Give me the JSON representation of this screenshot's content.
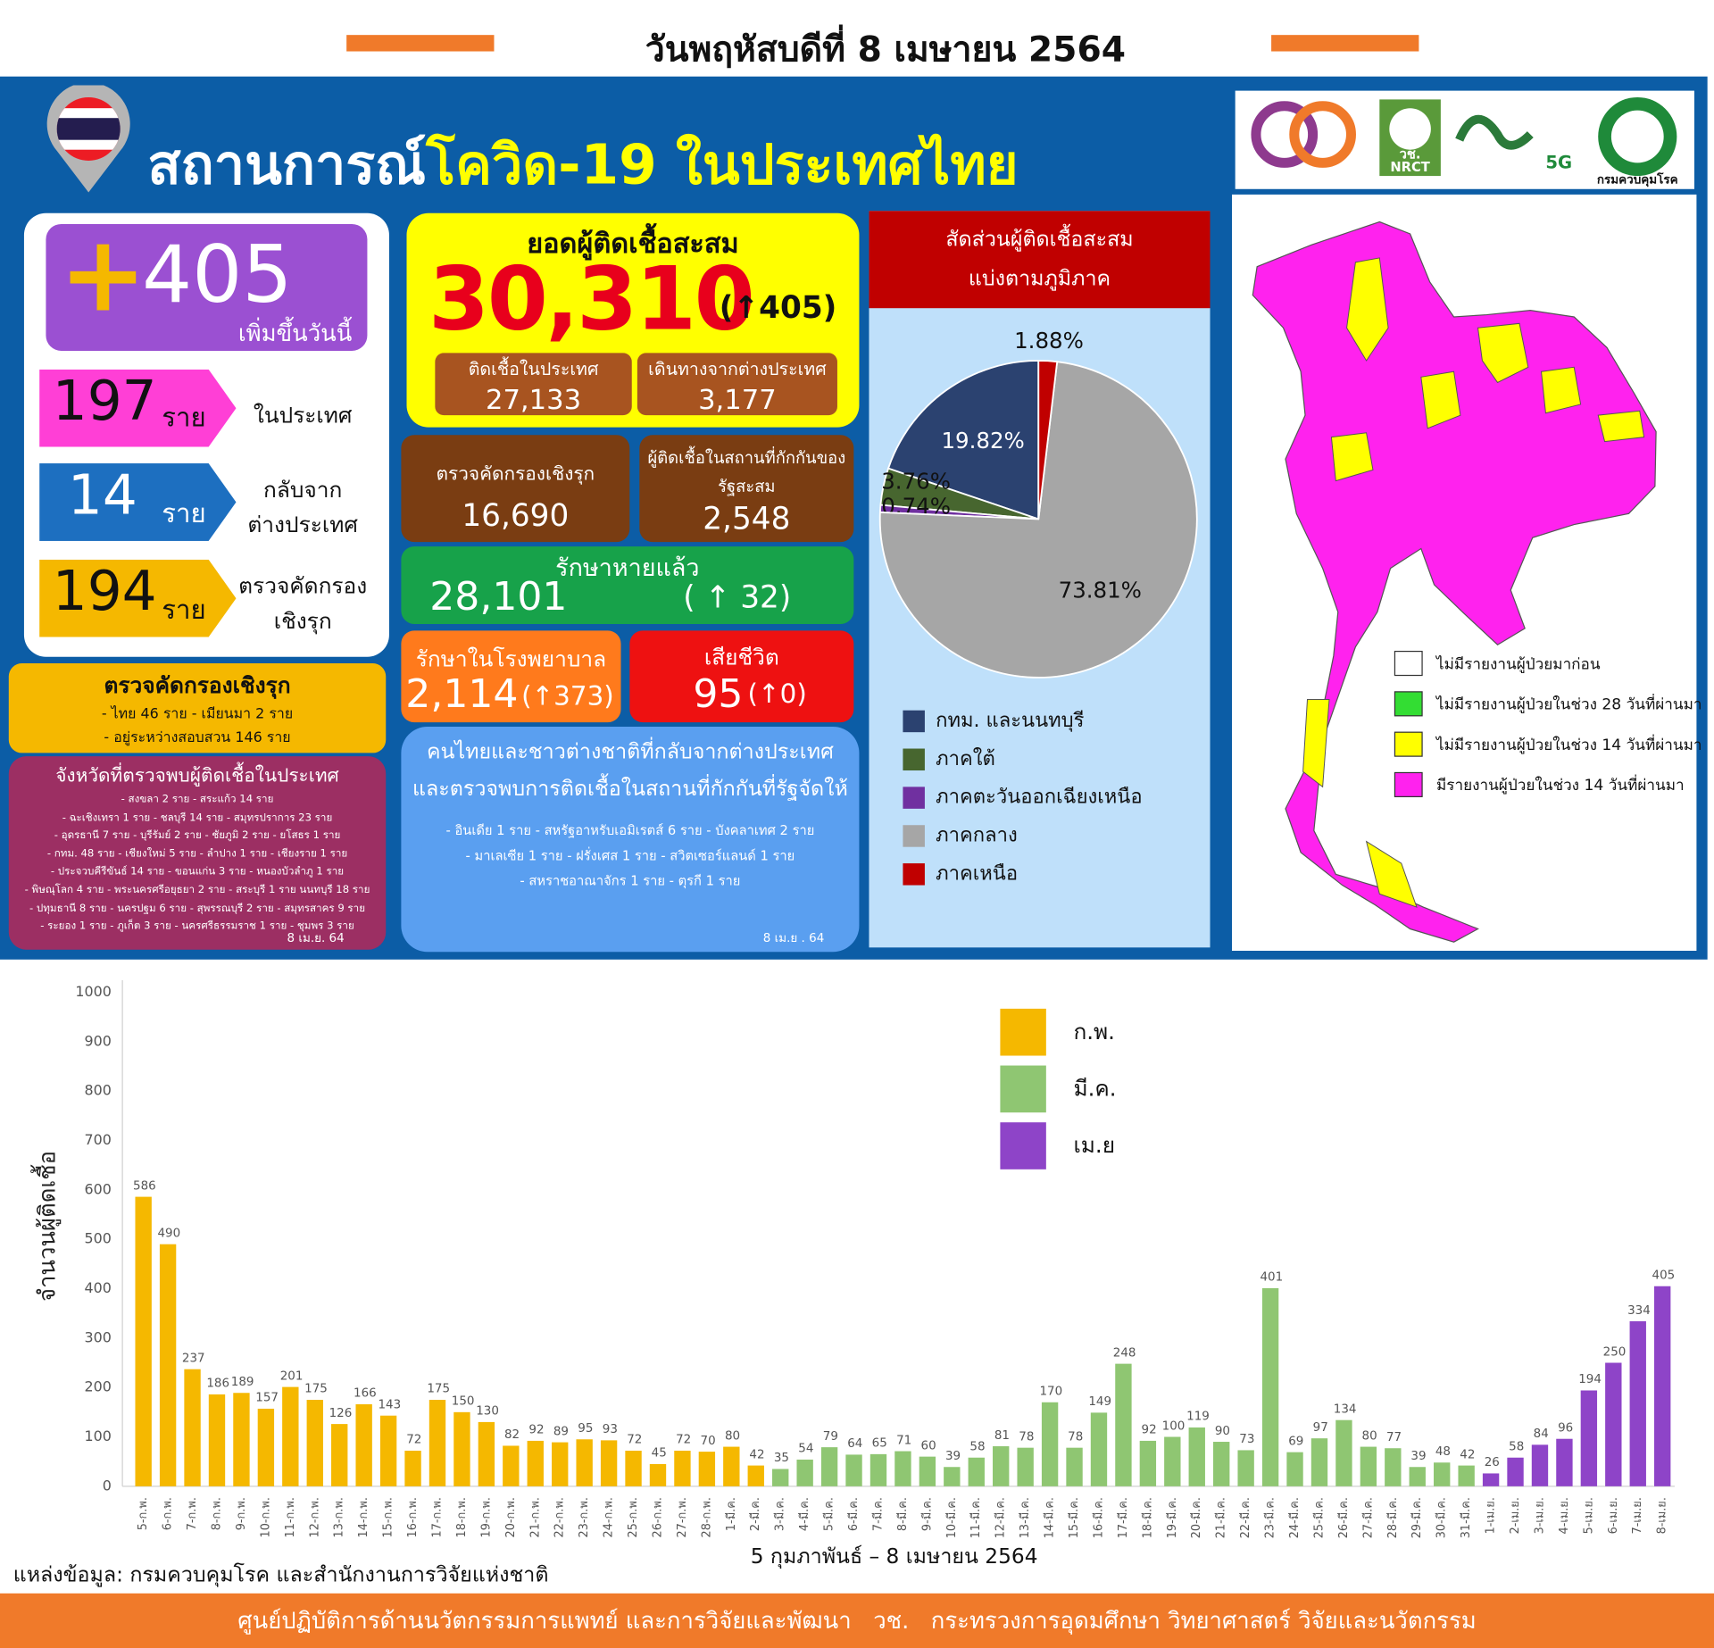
{
  "header": {
    "date": "วันพฤหัสบดีที่ 8 เมษายน 2564"
  },
  "banner": {
    "title_lead": "สถานการณ์",
    "title_rest": "โควิด-19 ในประเทศไทย"
  },
  "logos": {
    "nrct_thai": "วช.",
    "nrct": "NRCT",
    "fiveg": "5G",
    "ddc": "กรมควบคุมโรค"
  },
  "new_cases": {
    "plus": "+",
    "total": "405",
    "caption": "เพิ่มขึ้นวันนี้",
    "items": [
      {
        "count": "197",
        "unit": "ราย",
        "label": [
          "ในประเทศ"
        ]
      },
      {
        "count": "14",
        "unit": "ราย",
        "label": [
          "กลับจาก",
          "ต่างประเทศ"
        ]
      },
      {
        "count": "194",
        "unit": "ราย",
        "label": [
          "ตรวจคัดกรอง",
          "เชิงรุก"
        ]
      }
    ]
  },
  "cumulative": {
    "title": "ยอดผู้ติดเชื้อสะสม",
    "total": "30,310",
    "change": "(↑405)",
    "domestic": {
      "label": "ติดเชื้อในประเทศ",
      "value": "27,133"
    },
    "imported": {
      "label": "เดินทางจากต่างประเทศ",
      "value": "3,177"
    }
  },
  "active_search": {
    "label": "ตรวจคัดกรองเชิงรุก",
    "value": "16,690"
  },
  "state_quarantine": {
    "label": [
      "ผู้ติดเชื้อในสถานที่กักกันของ",
      "รัฐสะสม"
    ],
    "value": "2,548"
  },
  "recovered": {
    "label": "รักษาหายแล้ว",
    "value": "28,101",
    "change": "( ↑ 32)"
  },
  "hospitalized": {
    "label": "รักษาในโรงพยาบาล",
    "value": "2,114",
    "change": "(↑373)"
  },
  "deaths": {
    "label": "เสียชีวิต",
    "value": "95",
    "change": "(↑0)"
  },
  "screening": {
    "title": "ตรวจคัดกรองเชิงรุก",
    "lines": [
      "- ไทย 46 ราย   - เมียนมา 2 ราย",
      "- อยู่ระหว่างสอบสวน 146 ราย"
    ]
  },
  "provinces": {
    "title": "จังหวัดที่ตรวจพบผู้ติดเชื้อในประเทศ",
    "lines": [
      "- สงขลา 2 ราย  - สระแก้ว 14 ราย",
      "- ฉะเชิงเทรา 1 ราย  - ชลบุรี 14 ราย  - สมุทรปราการ 23 ราย",
      "- อุดรธานี 7 ราย  - บุรีรัมย์ 2 ราย  - ชัยภูมิ 2 ราย  - ยโสธร 1 ราย",
      "- กทม. 48 ราย  - เชียงใหม่ 5 ราย  - ลำปาง 1 ราย  - เชียงราย 1 ราย",
      "- ประจวบคีรีขันธ์ 14 ราย  - ขอนแก่น 3 ราย  - หนองบัวลำภู 1 ราย",
      "- พิษณุโลก 4 ราย  - พระนครศรีอยุธยา 2 ราย  - สระบุรี 1 ราย  นนทบุรี 18 ราย",
      "- ปทุมธานี 8 ราย  - นครปฐม 6 ราย  - สุพรรณบุรี 2 ราย  - สมุทรสาคร 9 ราย",
      "- ระยอง 1 ราย  - ภูเก็ต 3 ราย  - นครศรีธรรมราช 1 ราย  - ชุมพร 3 ราย"
    ],
    "date": "8 เม.ย. 64"
  },
  "returnees": {
    "title": [
      "คนไทยและชาวต่างชาติที่กลับจากต่างประเทศ",
      "และตรวจพบการติดเชื้อในสถานที่กักกันที่รัฐจัดให้"
    ],
    "lines": [
      "- อินเดีย 1 ราย   - สหรัฐอาหรับเอมิเรตส์ 6 ราย   - บังคลาเทศ 2 ราย",
      "- มาเลเซีย 1 ราย   - ฝรั่งเศส 1 ราย   - สวิตเซอร์แลนด์ 1 ราย",
      "- สหราชอาณาจักร 1 ราย   - ตุรกี 1 ราย"
    ],
    "date": "8 เม.ย . 64"
  },
  "map": {
    "legend": [
      {
        "label": "ไม่มีรายงานผู้ป่วยมาก่อน",
        "color": "#ffffff"
      },
      {
        "label": "ไม่มีรายงานผู้ป่วยในช่วง 28 วันที่ผ่านมา",
        "color": "#33dd33"
      },
      {
        "label": "ไม่มีรายงานผู้ป่วยในช่วง 14 วันที่ผ่านมา",
        "color": "#ffff00"
      },
      {
        "label": "มีรายงานผู้ป่วยในช่วง 14 วันที่ผ่านมา",
        "color": "#ff22ee"
      }
    ]
  },
  "chart_data": [
    {
      "type": "pie",
      "title": [
        "สัดส่วนผู้ติดเชื้อสะสม",
        "แบ่งตามภูมิภาค"
      ],
      "categories": [
        "กทม. และนนทบุรี",
        "ภาคใต้",
        "ภาคตะวันออกเฉียงเหนือ",
        "ภาคกลาง",
        "ภาคเหนือ"
      ],
      "values": [
        19.82,
        3.76,
        0.74,
        73.81,
        1.88
      ],
      "value_labels": [
        "19.82%",
        "3.76%",
        "0.74%",
        "73.81%",
        "1.88%"
      ],
      "colors": [
        "#2b4270",
        "#47662f",
        "#7030a0",
        "#a6a6a6",
        "#c00000"
      ]
    },
    {
      "type": "bar",
      "y_label": "จำนวนผู้ติดเชื้อ",
      "x_label": "5 กุมภาพันธ์ – 8 เมษายน 2564",
      "categories": [
        "5-ก.พ.",
        "6-ก.พ.",
        "7-ก.พ.",
        "8-ก.พ.",
        "9-ก.พ.",
        "10-ก.พ.",
        "11-ก.พ.",
        "12-ก.พ.",
        "13-ก.พ.",
        "14-ก.พ.",
        "15-ก.พ.",
        "16-ก.พ.",
        "17-ก.พ.",
        "18-ก.พ.",
        "19-ก.พ.",
        "20-ก.พ.",
        "21-ก.พ.",
        "22-ก.พ.",
        "23-ก.พ.",
        "24-ก.พ.",
        "25-ก.พ.",
        "26-ก.พ.",
        "27-ก.พ.",
        "28-ก.พ.",
        "1-มี.ค.",
        "2-มี.ค.",
        "3-มี.ค.",
        "4-มี.ค.",
        "5-มี.ค.",
        "6-มี.ค.",
        "7-มี.ค.",
        "8-มี.ค.",
        "9-มี.ค.",
        "10-มี.ค.",
        "11-มี.ค.",
        "12-มี.ค.",
        "13-มี.ค.",
        "14-มี.ค.",
        "15-มี.ค.",
        "16-มี.ค.",
        "17-มี.ค.",
        "18-มี.ค.",
        "19-มี.ค.",
        "20-มี.ค.",
        "21-มี.ค.",
        "22-มี.ค.",
        "23-มี.ค.",
        "24-มี.ค.",
        "25-มี.ค.",
        "26-มี.ค.",
        "27-มี.ค.",
        "28-มี.ค.",
        "29-มี.ค.",
        "30-มี.ค.",
        "31-มี.ค.",
        "1-เม.ย.",
        "2-เม.ย.",
        "3-เม.ย.",
        "4-เม.ย.",
        "5-เม.ย.",
        "6-เม.ย.",
        "7-เม.ย.",
        "8-เม.ย."
      ],
      "series": [
        {
          "name": "ก.พ.",
          "color": "#f5b800",
          "values": [
            586,
            490,
            237,
            186,
            189,
            157,
            201,
            175,
            126,
            166,
            143,
            72,
            175,
            150,
            130,
            82,
            92,
            89,
            95,
            93,
            72,
            45,
            72,
            70,
            80,
            42,
            null,
            null,
            null,
            null,
            null,
            null,
            null,
            null,
            null,
            null,
            null,
            null,
            null,
            null,
            null,
            null,
            null,
            null,
            null,
            null,
            null,
            null,
            null,
            null,
            null,
            null,
            null,
            null,
            null,
            null,
            null,
            null,
            null,
            null,
            null,
            null,
            null
          ]
        },
        {
          "name": "มี.ค.",
          "color": "#8fc672",
          "values": [
            null,
            null,
            null,
            null,
            null,
            null,
            null,
            null,
            null,
            null,
            null,
            null,
            null,
            null,
            null,
            null,
            null,
            null,
            null,
            null,
            null,
            null,
            null,
            null,
            null,
            null,
            35,
            54,
            79,
            64,
            65,
            71,
            60,
            39,
            58,
            81,
            78,
            170,
            78,
            149,
            248,
            92,
            100,
            119,
            90,
            73,
            401,
            69,
            97,
            134,
            80,
            77,
            39,
            48,
            42,
            null,
            null,
            null,
            null,
            null,
            null,
            null,
            null
          ]
        },
        {
          "name": "เม.ย",
          "color": "#8e44c8",
          "values": [
            null,
            null,
            null,
            null,
            null,
            null,
            null,
            null,
            null,
            null,
            null,
            null,
            null,
            null,
            null,
            null,
            null,
            null,
            null,
            null,
            null,
            null,
            null,
            null,
            null,
            null,
            null,
            null,
            null,
            null,
            null,
            null,
            null,
            null,
            null,
            null,
            null,
            null,
            null,
            null,
            null,
            null,
            null,
            null,
            null,
            null,
            null,
            null,
            null,
            null,
            null,
            null,
            null,
            null,
            null,
            26,
            58,
            84,
            96,
            194,
            250,
            334,
            405
          ]
        }
      ],
      "ylim": [
        0,
        1000
      ],
      "yticks": [
        0,
        100,
        200,
        300,
        400,
        500,
        600,
        700,
        800,
        900,
        1000
      ]
    }
  ],
  "footer": {
    "source": "แหล่งข้อมูล: กรมควบคุมโรค และสำนักงานการวิจัยแห่งชาติ",
    "banner": "ศูนย์ปฏิบัติการด้านนวัตกรรมการแพทย์ และการวิจัยและพัฒนา   วช.   กระทรวงการอุดมศึกษา วิทยาศาสตร์ วิจัยและนวัตกรรม"
  }
}
